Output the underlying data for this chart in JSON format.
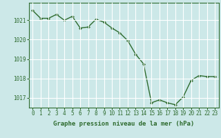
{
  "hours": [
    0,
    1,
    2,
    3,
    4,
    5,
    6,
    7,
    8,
    9,
    10,
    11,
    12,
    13,
    14,
    15,
    16,
    17,
    18,
    19,
    20,
    21,
    22,
    23
  ],
  "pressure": [
    1021.5,
    1021.1,
    1021.1,
    1021.3,
    1021.0,
    1021.2,
    1020.6,
    1020.65,
    1021.05,
    1020.9,
    1020.6,
    1020.35,
    1019.95,
    1019.25,
    1018.75,
    1016.75,
    1016.9,
    1016.75,
    1016.65,
    1017.05,
    1017.9,
    1018.15,
    1018.1,
    1018.1
  ],
  "line_color": "#2d6a2d",
  "marker": "D",
  "marker_size": 2.0,
  "line_width": 1.0,
  "background_color": "#cce8e8",
  "grid_color": "#ffffff",
  "text_color": "#2d6a2d",
  "xlabel": "Graphe pression niveau de la mer (hPa)",
  "ylim": [
    1016.5,
    1021.9
  ],
  "yticks": [
    1017,
    1018,
    1019,
    1020,
    1021
  ],
  "xticks": [
    0,
    1,
    2,
    3,
    4,
    5,
    6,
    7,
    8,
    9,
    10,
    11,
    12,
    13,
    14,
    15,
    16,
    17,
    18,
    19,
    20,
    21,
    22,
    23
  ],
  "tick_fontsize": 5.5,
  "label_fontsize": 6.5
}
